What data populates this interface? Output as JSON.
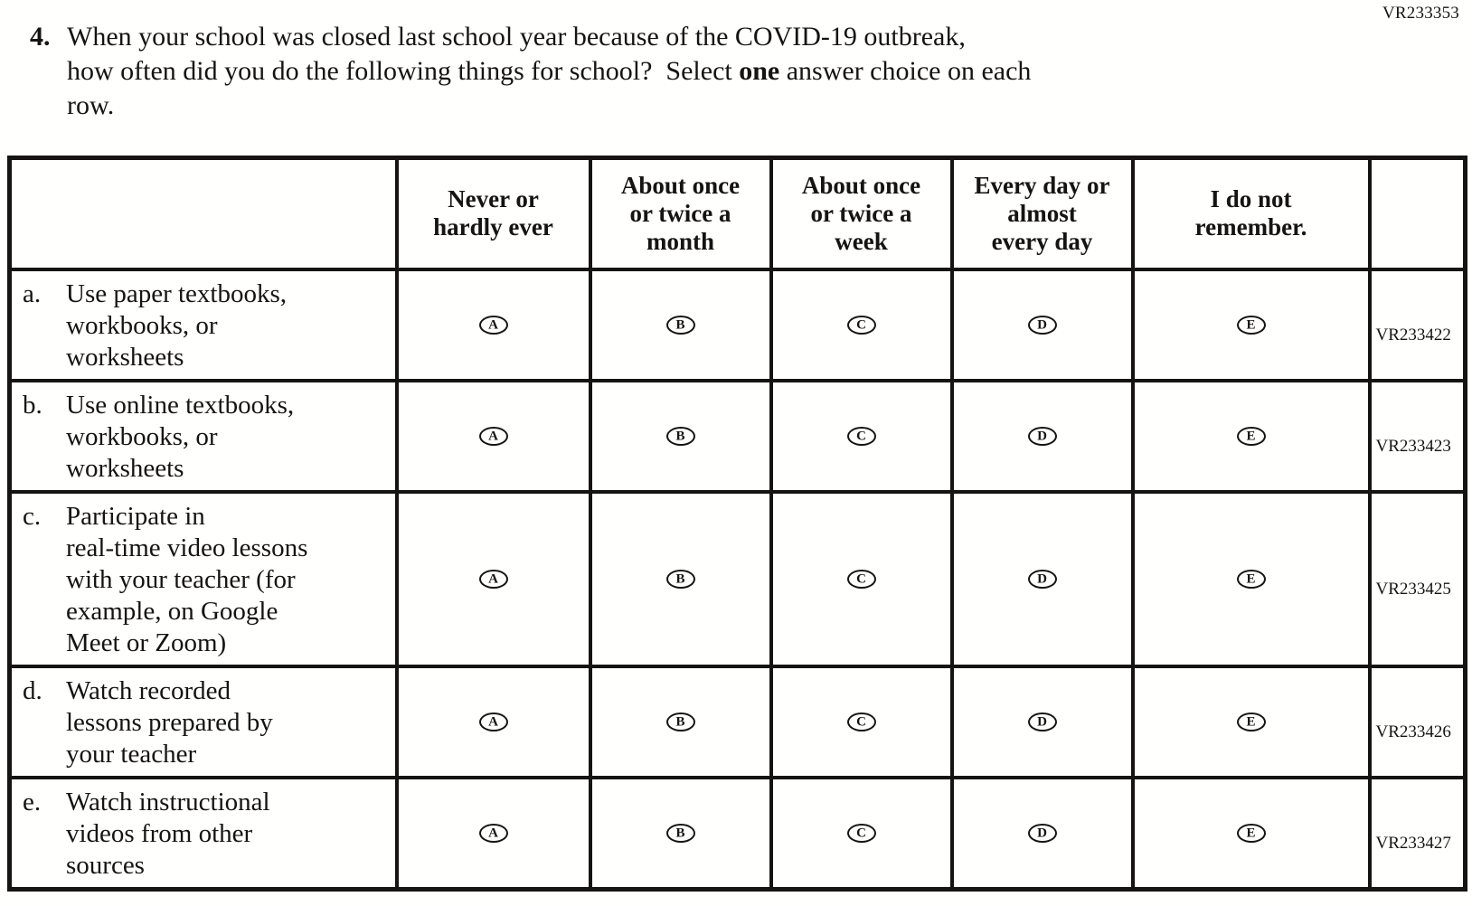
{
  "colors": {
    "ink": "#161412",
    "paper": "#fffffd"
  },
  "page": {
    "form_code": "VR233353",
    "question": {
      "number": "4.",
      "line1": "When your school was closed last school year because of the COVID-19 outbreak,",
      "line2_pre": "how often did you do the following things for school?  Select ",
      "line2_bold": "one",
      "line2_post": " answer choice on each",
      "line3": "row."
    },
    "table": {
      "choice_letters": [
        "A",
        "B",
        "C",
        "D",
        "E"
      ],
      "headers": [
        {
          "lines": [
            "Never or",
            "hardly ever"
          ]
        },
        {
          "lines": [
            "About once",
            "or twice a",
            "month"
          ]
        },
        {
          "lines": [
            "About once",
            "or twice a",
            "week"
          ]
        },
        {
          "lines": [
            "Every day or",
            "almost",
            "every day"
          ]
        },
        {
          "lines": [
            "I do not",
            "remember."
          ]
        }
      ],
      "rows": [
        {
          "letter": "a.",
          "lines": [
            "Use paper textbooks,",
            "workbooks, or",
            "worksheets"
          ],
          "code": "VR233422"
        },
        {
          "letter": "b.",
          "lines": [
            "Use online textbooks,",
            "workbooks, or",
            "worksheets"
          ],
          "code": "VR233423"
        },
        {
          "letter": "c.",
          "lines": [
            "Participate in",
            "real-time video lessons",
            "with your teacher (for",
            "example, on Google",
            "Meet or Zoom)"
          ],
          "code": "VR233425"
        },
        {
          "letter": "d.",
          "lines": [
            "Watch recorded",
            "lessons prepared by",
            "your teacher"
          ],
          "code": "VR233426"
        },
        {
          "letter": "e.",
          "lines": [
            "Watch instructional",
            "videos from other",
            "sources"
          ],
          "code": "VR233427"
        }
      ]
    }
  }
}
